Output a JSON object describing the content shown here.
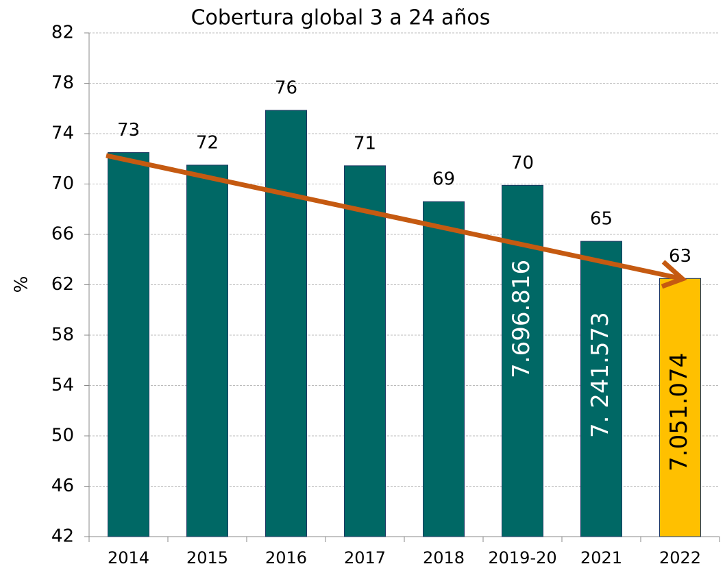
{
  "chart_data": {
    "type": "bar",
    "title": "Cobertura global 3 a 24 años",
    "y_label": "%",
    "categories": [
      "2014",
      "2015",
      "2016",
      "2017",
      "2018",
      "2019-20",
      "2021",
      "2022"
    ],
    "values": [
      72.5,
      71.5,
      75.85,
      71.45,
      68.6,
      69.9,
      65.45,
      62.5
    ],
    "value_labels": [
      "73",
      "72",
      "76",
      "71",
      "69",
      "70",
      "65",
      "63"
    ],
    "colors": [
      "#006865",
      "#006865",
      "#006865",
      "#006865",
      "#006865",
      "#006865",
      "#006865",
      "#ffc000"
    ],
    "annotations": [
      {
        "category": "2019-20",
        "text": "7.696.816",
        "color": "#ffffff"
      },
      {
        "category": "2021",
        "text": "7. 241.573",
        "color": "#ffffff"
      },
      {
        "category": "2022",
        "text": "7.051.074",
        "color": "#000000"
      }
    ],
    "ylim": [
      42,
      82
    ],
    "yticks": [
      42,
      46,
      50,
      54,
      58,
      62,
      66,
      70,
      74,
      78,
      82
    ],
    "grid": true
  }
}
